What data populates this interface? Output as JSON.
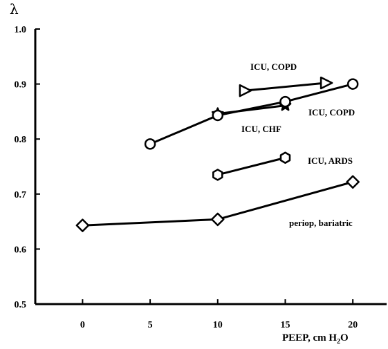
{
  "chart_data": {
    "type": "line",
    "ylabel": "λ",
    "xlabel_main": "PEEP, cm H",
    "xlabel_sub": "2",
    "xlabel_end": "O",
    "xlim": [
      -3.5,
      22.5
    ],
    "ylim": [
      0.5,
      1.0
    ],
    "xticks": [
      0,
      5,
      10,
      15,
      20
    ],
    "yticks": [
      0.5,
      0.6,
      0.7,
      0.8,
      0.9,
      1.0
    ],
    "ytick_labels": [
      "0.5",
      "0.6",
      "0.7",
      "0.8",
      "0.9",
      "1.0"
    ],
    "grid": false,
    "series": [
      {
        "name": "ICU, COPD",
        "marker": "triangle-right",
        "x": [
          12,
          18
        ],
        "y": [
          0.888,
          0.902
        ]
      },
      {
        "name": "ICU, CHF",
        "marker": "star",
        "x": [
          10,
          15
        ],
        "y": [
          0.846,
          0.861
        ]
      },
      {
        "name": "ICU, COPD",
        "marker": "circle",
        "x": [
          5,
          10,
          15,
          20
        ],
        "y": [
          0.791,
          0.843,
          0.868,
          0.9
        ]
      },
      {
        "name": "ICU, ARDS",
        "marker": "hexagon",
        "x": [
          10,
          15
        ],
        "y": [
          0.735,
          0.766
        ]
      },
      {
        "name": "periop, bariatric",
        "marker": "diamond",
        "x": [
          0,
          10,
          20
        ],
        "y": [
          0.643,
          0.654,
          0.722
        ]
      }
    ]
  }
}
